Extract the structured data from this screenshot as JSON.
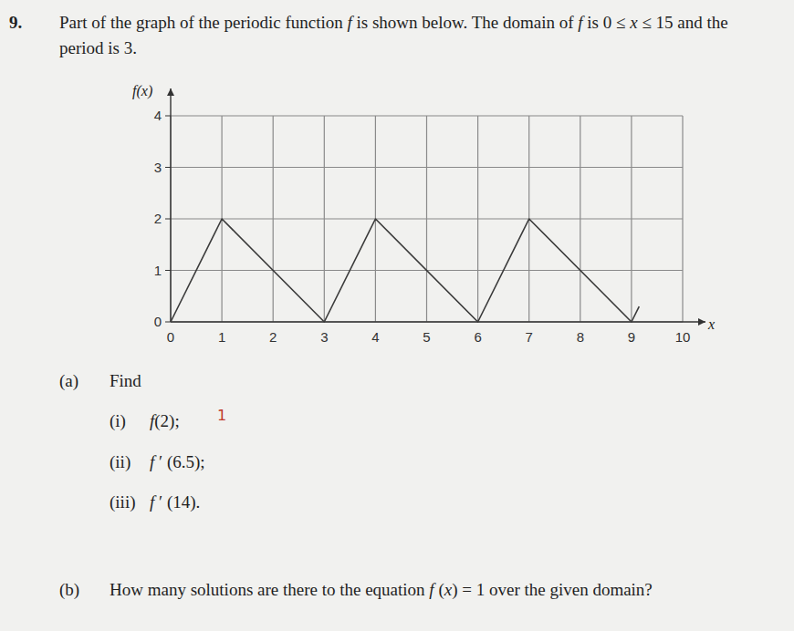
{
  "document": {
    "number": "9.",
    "intro": [
      [
        "Part of the graph of the periodic function ",
        {
          "text": "f",
          "italic": true
        },
        " is shown below. The domain of ",
        {
          "text": "f",
          "italic": true
        },
        " is 0 ≤ ",
        {
          "text": "x",
          "italic": true
        },
        " ≤ 15 and the"
      ],
      [
        "period is 3."
      ]
    ],
    "part_a": {
      "label": "(a)",
      "text": "Find",
      "items": [
        {
          "label": "(i)",
          "text": [
            {
              "text": "f",
              "italic": true
            },
            "(2);"
          ],
          "annotation": "1"
        },
        {
          "label": "(ii)",
          "text": [
            {
              "text": "f",
              "italic": true
            },
            " ′ (6.5);"
          ]
        },
        {
          "label": "(iii)",
          "text": [
            {
              "text": "f",
              "italic": true
            },
            " ′ (14)."
          ]
        }
      ]
    },
    "part_b": {
      "label": "(b)",
      "text": [
        "How many solutions are there to the equation ",
        {
          "text": "f",
          "italic": true
        },
        " (",
        {
          "text": "x",
          "italic": true
        },
        ") = 1 over the given domain?"
      ]
    }
  },
  "chart_data": {
    "type": "line",
    "y_label": "f(x)",
    "x_label": "x",
    "x": [
      0,
      1,
      3,
      4,
      6,
      7,
      9,
      9.15
    ],
    "values": [
      0,
      2,
      0,
      2,
      0,
      2,
      0,
      0.3
    ],
    "color": "#3a3a3a",
    "xlim": [
      0,
      10
    ],
    "ylim": [
      0,
      4
    ],
    "xticks": [
      0,
      1,
      2,
      3,
      4,
      5,
      6,
      7,
      8,
      9,
      10
    ],
    "yticks": [
      0,
      1,
      2,
      3,
      4
    ],
    "grid": true
  }
}
